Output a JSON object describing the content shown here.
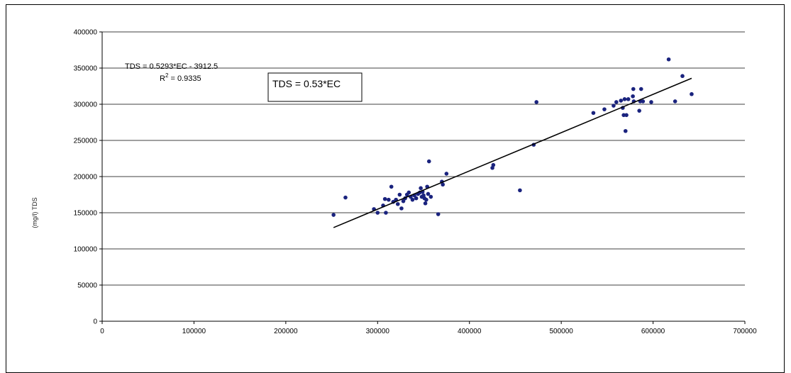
{
  "chart_data": {
    "type": "scatter",
    "title": "",
    "xlabel": "",
    "ylabel": "(mg/l) TDS",
    "xlim": [
      0,
      700000
    ],
    "ylim": [
      0,
      400000
    ],
    "x_ticks": [
      0,
      100000,
      200000,
      300000,
      400000,
      500000,
      600000,
      700000
    ],
    "y_ticks": [
      0,
      50000,
      100000,
      150000,
      200000,
      250000,
      300000,
      350000,
      400000
    ],
    "grid": "horizontal",
    "point_color": "#1a237e",
    "line_color": "#000000",
    "trendline": {
      "equation": "TDS = 0.5293*EC - 3912.5",
      "r2_label": "R",
      "r2_sup": "2",
      "r2_value": " = 0.9335",
      "slope": 0.5293,
      "intercept": -3912.5,
      "x_range": [
        252000,
        642000
      ]
    },
    "annotation_box": "TDS = 0.53*EC",
    "points": [
      [
        252000,
        147000
      ],
      [
        265000,
        171000
      ],
      [
        296000,
        155000
      ],
      [
        300000,
        150000
      ],
      [
        306000,
        160000
      ],
      [
        308000,
        169000
      ],
      [
        309000,
        150000
      ],
      [
        312000,
        168000
      ],
      [
        315000,
        186000
      ],
      [
        317000,
        165000
      ],
      [
        320000,
        168000
      ],
      [
        322000,
        162000
      ],
      [
        324000,
        175000
      ],
      [
        326000,
        156000
      ],
      [
        328000,
        166000
      ],
      [
        330000,
        170000
      ],
      [
        332000,
        175000
      ],
      [
        334000,
        178000
      ],
      [
        336000,
        172000
      ],
      [
        338000,
        168000
      ],
      [
        340000,
        174000
      ],
      [
        342000,
        170000
      ],
      [
        344000,
        176000
      ],
      [
        346000,
        178000
      ],
      [
        347000,
        184000
      ],
      [
        348000,
        172000
      ],
      [
        349000,
        179000
      ],
      [
        350000,
        174000
      ],
      [
        351000,
        170000
      ],
      [
        352000,
        163000
      ],
      [
        353000,
        168000
      ],
      [
        354000,
        186000
      ],
      [
        355000,
        176000
      ],
      [
        356000,
        221000
      ],
      [
        358000,
        172000
      ],
      [
        366000,
        148000
      ],
      [
        370000,
        193000
      ],
      [
        371000,
        189000
      ],
      [
        375000,
        204000
      ],
      [
        425000,
        212000
      ],
      [
        426000,
        216000
      ],
      [
        455000,
        181000
      ],
      [
        470000,
        244000
      ],
      [
        473000,
        303000
      ],
      [
        535000,
        288000
      ],
      [
        547000,
        293000
      ],
      [
        557000,
        298000
      ],
      [
        560000,
        303000
      ],
      [
        565000,
        305000
      ],
      [
        567000,
        295000
      ],
      [
        568000,
        285000
      ],
      [
        569000,
        307000
      ],
      [
        570000,
        263000
      ],
      [
        571000,
        285000
      ],
      [
        573000,
        307000
      ],
      [
        578000,
        311000
      ],
      [
        578500,
        321000
      ],
      [
        579000,
        304000
      ],
      [
        585000,
        291000
      ],
      [
        586000,
        304000
      ],
      [
        587000,
        321000
      ],
      [
        589000,
        304000
      ],
      [
        598000,
        303000
      ],
      [
        617000,
        362000
      ],
      [
        624000,
        304000
      ],
      [
        632000,
        339000
      ],
      [
        642000,
        314000
      ]
    ]
  }
}
